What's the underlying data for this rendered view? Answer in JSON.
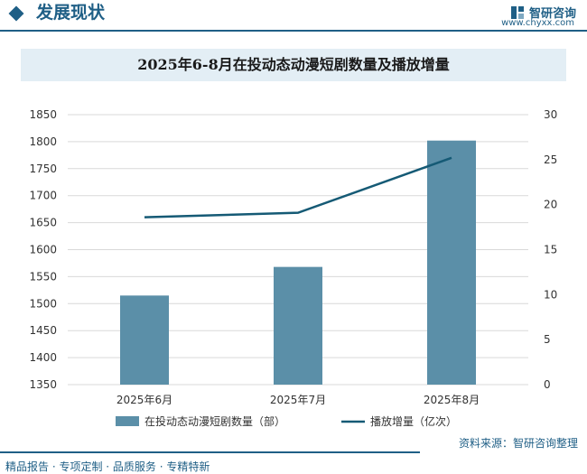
{
  "header": {
    "title": "发展现状",
    "brand_name": "智研咨询",
    "brand_url": "www.chyxx.com"
  },
  "footer": {
    "services": "精品报告 · 专项定制 · 品质服务 · 专精特新",
    "source": "资料来源：智研咨询整理"
  },
  "colors": {
    "bar": "#5b8fa8",
    "line": "#155a75",
    "accent": "#1f5f86"
  },
  "chart_data": {
    "type": "bar",
    "title": "2025年6-8月在投动态动漫短剧数量及播放增量",
    "categories": [
      "2025年6月",
      "2025年7月",
      "2025年8月"
    ],
    "series": [
      {
        "name": "在投动态动漫短剧数量（部）",
        "type": "bar",
        "axis": "left",
        "values": [
          1515,
          1568,
          1802
        ]
      },
      {
        "name": "播放增量（亿次）",
        "type": "line",
        "axis": "right",
        "values": [
          18.6,
          19.1,
          25.2
        ]
      }
    ],
    "y_left": {
      "min": 1350,
      "max": 1850,
      "step": 50,
      "ticks": [
        "1350",
        "1400",
        "1450",
        "1500",
        "1550",
        "1600",
        "1650",
        "1700",
        "1750",
        "1800",
        "1850"
      ]
    },
    "y_right": {
      "min": 0,
      "max": 30,
      "step": 5,
      "ticks": [
        "0",
        "5",
        "10",
        "15",
        "20",
        "25",
        "30"
      ]
    },
    "grid": true,
    "legend_position": "bottom"
  }
}
